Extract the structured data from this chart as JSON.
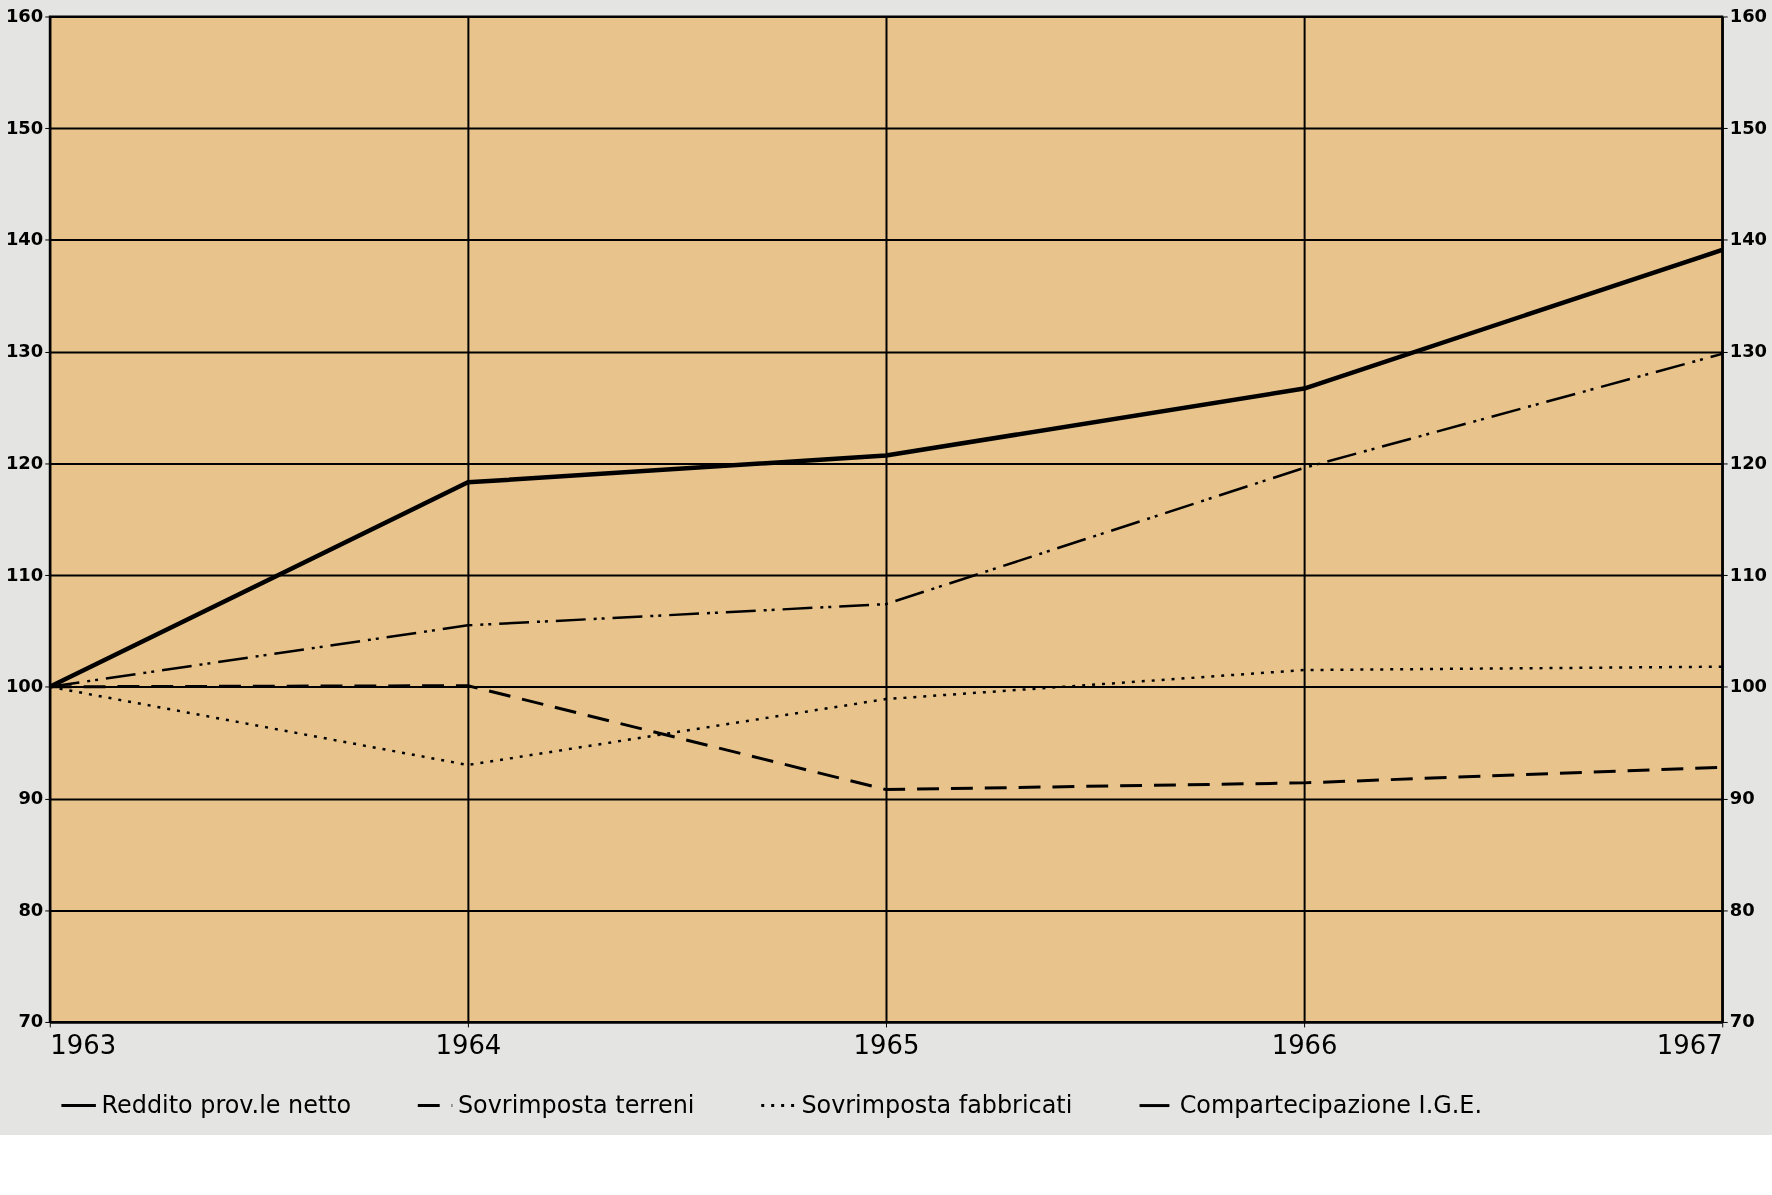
{
  "chart_data": {
    "type": "line",
    "categories": [
      "1963",
      "1964",
      "1965",
      "1966",
      "1967"
    ],
    "series": [
      {
        "name": "Reddito prov.le netto",
        "color": "#000000",
        "line_style": "solid",
        "values": [
          100,
          118.3,
          120.7,
          126.7,
          139.1
        ]
      },
      {
        "name": "Sovrimposta terreni",
        "color": "#000000",
        "line_style": "dashed",
        "values": [
          100,
          100.1,
          90.8,
          91.4,
          92.8
        ]
      },
      {
        "name": "Sovrimposta fabbricati",
        "color": "#000000",
        "line_style": "dotted",
        "values": [
          100,
          93.0,
          98.9,
          101.5,
          101.8
        ]
      },
      {
        "name": "Compartecipazione I.G.E.",
        "color": "#000000",
        "line_style": "dashdot",
        "values": [
          100,
          105.5,
          107.4,
          119.6,
          129.8
        ]
      }
    ],
    "ylim": [
      70,
      160
    ],
    "yticks": [
      70,
      80,
      90,
      100,
      110,
      120,
      130,
      140,
      150,
      160
    ],
    "y2lim": [
      70,
      160
    ],
    "y2ticks": [
      70,
      80,
      90,
      100,
      110,
      120,
      130,
      140,
      150,
      160
    ],
    "grid": true,
    "legend": "bottom"
  }
}
